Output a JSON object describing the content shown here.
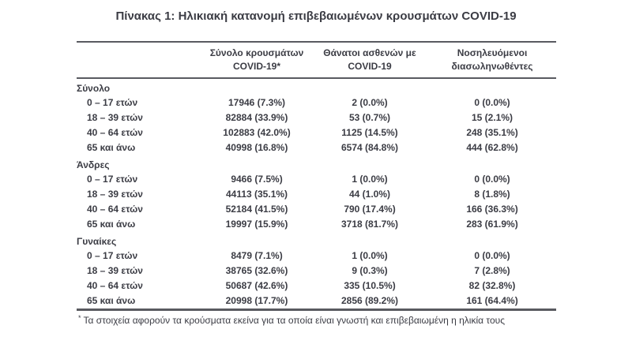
{
  "title": "Πίνακας 1: Ηλικιακή κατανομή επιβεβαιωμένων κρουσμάτων COVID-19",
  "colors": {
    "text": "#3b3c44",
    "rule": "#595a60"
  },
  "table": {
    "columns": [
      {
        "line1": "Σύνολο κρουσμάτων",
        "line2": "COVID-19*"
      },
      {
        "line1": "Θάνατοι ασθενών με",
        "line2": "COVID-19"
      },
      {
        "line1": "Νοσηλευόμενοι",
        "line2": "διασωληνωθέντες"
      }
    ],
    "sections": [
      {
        "name": "Σύνολο",
        "rows": [
          {
            "label": "0 – 17 ετών",
            "cells": [
              "17946 (7.3%)",
              "2 (0.0%)",
              "0 (0.0%)"
            ]
          },
          {
            "label": "18 – 39 ετών",
            "cells": [
              "82884 (33.9%)",
              "53 (0.7%)",
              "15 (2.1%)"
            ]
          },
          {
            "label": "40 – 64 ετών",
            "cells": [
              "102883 (42.0%)",
              "1125 (14.5%)",
              "248 (35.1%)"
            ]
          },
          {
            "label": "65 και άνω",
            "cells": [
              "40998 (16.8%)",
              "6574 (84.8%)",
              "444 (62.8%)"
            ]
          }
        ]
      },
      {
        "name": "Άνδρες",
        "rows": [
          {
            "label": "0 – 17 ετών",
            "cells": [
              "9466 (7.5%)",
              "1 (0.0%)",
              "0 (0.0%)"
            ]
          },
          {
            "label": "18 – 39 ετών",
            "cells": [
              "44113 (35.1%)",
              "44 (1.0%)",
              "8 (1.8%)"
            ]
          },
          {
            "label": "40 – 64 ετών",
            "cells": [
              "52184 (41.5%)",
              "790 (17.4%)",
              "166 (36.3%)"
            ]
          },
          {
            "label": "65 και άνω",
            "cells": [
              "19997 (15.9%)",
              "3718 (81.7%)",
              "283 (61.9%)"
            ]
          }
        ]
      },
      {
        "name": "Γυναίκες",
        "rows": [
          {
            "label": "0 – 17 ετών",
            "cells": [
              "8479 (7.1%)",
              "1 (0.0%)",
              "0 (0.0%)"
            ]
          },
          {
            "label": "18 – 39 ετών",
            "cells": [
              "38765 (32.6%)",
              "9 (0.3%)",
              "7 (2.8%)"
            ]
          },
          {
            "label": "40 – 64 ετών",
            "cells": [
              "50687 (42.6%)",
              "335 (10.5%)",
              "82 (32.8%)"
            ]
          },
          {
            "label": "65 και άνω",
            "cells": [
              "20998 (17.7%)",
              "2856 (89.2%)",
              "161 (64.4%)"
            ]
          }
        ]
      }
    ],
    "footnote_marker": "*",
    "footnote": "Τα στοιχεία αφορούν τα κρούσματα εκείνα για τα οποία είναι γνωστή και επιβεβαιωμένη η ηλικία τους"
  }
}
